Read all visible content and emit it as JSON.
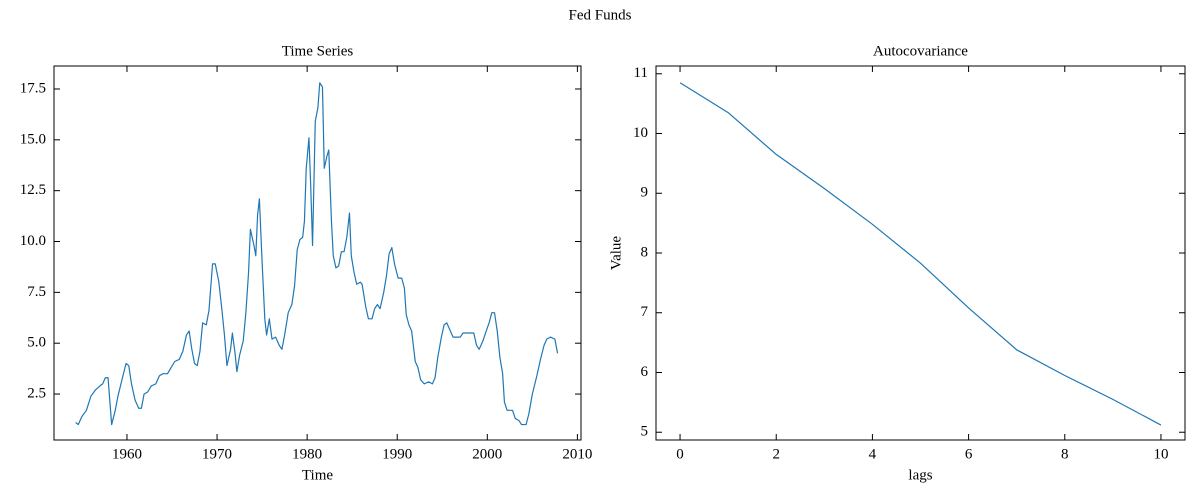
{
  "title": "Fed Funds",
  "chart_data": [
    {
      "type": "line",
      "title": "Time Series",
      "xlabel": "Time",
      "color": "#1f77b4",
      "x": [
        1954.3,
        1954.6,
        1955.0,
        1955.5,
        1956.0,
        1956.5,
        1957.0,
        1957.3,
        1957.6,
        1957.9,
        1958.3,
        1958.7,
        1959.0,
        1959.5,
        1959.9,
        1960.2,
        1960.5,
        1960.9,
        1961.3,
        1961.6,
        1961.9,
        1962.3,
        1962.7,
        1963.2,
        1963.6,
        1964.0,
        1964.5,
        1964.9,
        1965.3,
        1965.8,
        1966.2,
        1966.6,
        1966.9,
        1967.2,
        1967.5,
        1967.8,
        1968.1,
        1968.4,
        1968.8,
        1969.1,
        1969.5,
        1969.8,
        1970.2,
        1970.5,
        1970.8,
        1971.1,
        1971.5,
        1971.7,
        1972.0,
        1972.2,
        1972.5,
        1972.9,
        1973.2,
        1973.5,
        1973.7,
        1974.1,
        1974.3,
        1974.5,
        1974.7,
        1975.0,
        1975.3,
        1975.5,
        1975.8,
        1976.1,
        1976.5,
        1976.9,
        1977.2,
        1977.5,
        1977.9,
        1978.3,
        1978.6,
        1978.9,
        1979.2,
        1979.5,
        1979.7,
        1979.9,
        1980.2,
        1980.4,
        1980.6,
        1980.9,
        1981.2,
        1981.4,
        1981.7,
        1981.9,
        1982.2,
        1982.4,
        1982.7,
        1982.9,
        1983.2,
        1983.5,
        1983.8,
        1984.1,
        1984.4,
        1984.7,
        1984.9,
        1985.2,
        1985.5,
        1985.9,
        1986.1,
        1986.5,
        1986.8,
        1987.2,
        1987.5,
        1987.8,
        1988.1,
        1988.5,
        1988.8,
        1989.1,
        1989.4,
        1989.7,
        1990.1,
        1990.5,
        1990.8,
        1991.0,
        1991.3,
        1991.6,
        1992.0,
        1992.3,
        1992.6,
        1993.0,
        1993.5,
        1993.9,
        1994.2,
        1994.5,
        1994.9,
        1995.2,
        1995.5,
        1995.8,
        1996.2,
        1996.6,
        1997.0,
        1997.3,
        1997.7,
        1998.0,
        1998.5,
        1998.8,
        1999.1,
        1999.5,
        1999.8,
        2000.2,
        2000.5,
        2000.8,
        2001.1,
        2001.4,
        2001.7,
        2001.9,
        2002.2,
        2002.8,
        2003.1,
        2003.5,
        2003.8,
        2004.3,
        2004.6,
        2005.0,
        2005.5,
        2005.9,
        2006.3,
        2006.6,
        2007.0,
        2007.5,
        2007.8
      ],
      "values": [
        1.1,
        1.0,
        1.4,
        1.7,
        2.4,
        2.7,
        2.9,
        3.0,
        3.3,
        3.3,
        1.0,
        1.7,
        2.4,
        3.3,
        4.0,
        3.9,
        3.0,
        2.2,
        1.8,
        1.8,
        2.5,
        2.6,
        2.9,
        3.0,
        3.4,
        3.5,
        3.5,
        3.8,
        4.1,
        4.2,
        4.6,
        5.4,
        5.6,
        4.7,
        4.0,
        3.9,
        4.6,
        6.0,
        5.9,
        6.6,
        8.9,
        8.9,
        8.0,
        6.8,
        5.5,
        3.9,
        4.7,
        5.5,
        4.5,
        3.6,
        4.4,
        5.1,
        6.5,
        8.5,
        10.6,
        9.8,
        9.3,
        11.3,
        12.1,
        9.0,
        6.2,
        5.4,
        6.2,
        5.2,
        5.3,
        4.9,
        4.7,
        5.4,
        6.5,
        6.9,
        7.8,
        9.6,
        10.1,
        10.2,
        11.0,
        13.6,
        15.1,
        12.7,
        9.8,
        15.9,
        16.6,
        17.8,
        17.6,
        13.6,
        14.2,
        14.5,
        11.0,
        9.3,
        8.7,
        8.8,
        9.5,
        9.5,
        10.2,
        11.4,
        9.3,
        8.5,
        7.9,
        8.0,
        7.9,
        6.8,
        6.2,
        6.2,
        6.7,
        6.9,
        6.7,
        7.5,
        8.3,
        9.4,
        9.7,
        8.9,
        8.2,
        8.2,
        7.7,
        6.4,
        5.9,
        5.6,
        4.1,
        3.8,
        3.2,
        3.0,
        3.1,
        3.0,
        3.3,
        4.3,
        5.3,
        5.9,
        6.0,
        5.7,
        5.3,
        5.3,
        5.3,
        5.5,
        5.5,
        5.5,
        5.5,
        4.9,
        4.7,
        5.1,
        5.5,
        6.0,
        6.5,
        6.5,
        5.6,
        4.3,
        3.5,
        2.1,
        1.7,
        1.7,
        1.3,
        1.2,
        1.0,
        1.0,
        1.5,
        2.5,
        3.4,
        4.2,
        4.9,
        5.2,
        5.3,
        5.2,
        4.5
      ],
      "xlim": [
        1951.9,
        2010.4
      ],
      "xticks": [
        1960,
        1970,
        1980,
        1990,
        2000,
        2010
      ],
      "ylim": [
        0.24,
        18.63
      ],
      "yticks": [
        2.5,
        {
          "value": 5,
          "label": "5.0"
        },
        7.5,
        {
          "value": 10,
          "label": "10.0"
        },
        12.5,
        {
          "value": 15,
          "label": "15.0"
        },
        17.5
      ]
    },
    {
      "type": "line",
      "title": "Autocovariance",
      "xlabel": "lags",
      "ylabel": "Value",
      "color": "#1f77b4",
      "x": [
        0,
        1,
        2,
        3,
        4,
        5,
        6,
        7,
        8,
        9,
        10
      ],
      "values": [
        10.85,
        10.35,
        9.65,
        9.08,
        8.48,
        7.83,
        7.08,
        6.38,
        5.95,
        5.55,
        5.12
      ],
      "xlim": [
        -0.5,
        10.5
      ],
      "xticks": [
        0,
        2,
        4,
        6,
        8,
        10
      ],
      "ylim": [
        4.87,
        11.13
      ],
      "yticks": [
        5,
        6,
        7,
        8,
        9,
        10,
        11
      ]
    }
  ]
}
